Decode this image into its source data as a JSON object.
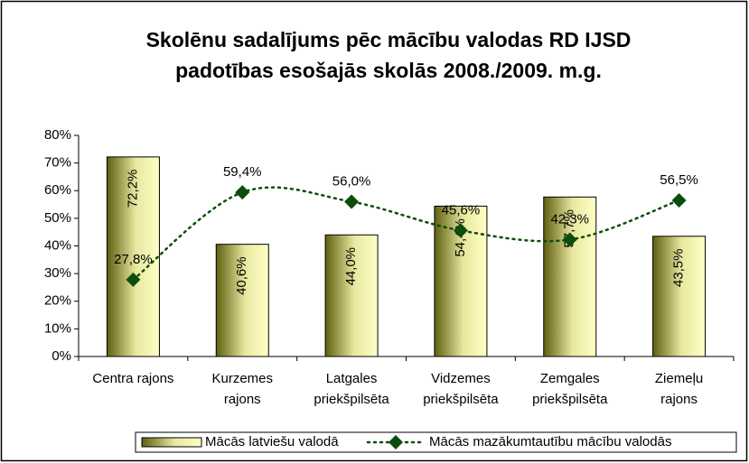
{
  "chart_data": {
    "type": "combo",
    "title": [
      "Skolēnu sadalījums pēc mācību valodas RD IJSD",
      "padotības esošajās skolās 2008./2009. m.g."
    ],
    "categories": [
      [
        "Centra rajons"
      ],
      [
        "Kurzemes",
        "rajons"
      ],
      [
        "Latgales",
        "priekšpilsēta"
      ],
      [
        "Vidzemes",
        "priekšpilsēta"
      ],
      [
        "Zemgales",
        "priekšpilsēta"
      ],
      [
        "Ziemeļu",
        "rajons"
      ]
    ],
    "series": [
      {
        "name": "Mācās latviešu valodā",
        "type": "bar",
        "color": "#ffffb0",
        "values": [
          72.2,
          40.6,
          44.0,
          54.4,
          57.7,
          43.5
        ],
        "value_labels": [
          "72,2%",
          "40,6%",
          "44,0%",
          "54,4%",
          "57,7%",
          "43,5%"
        ]
      },
      {
        "name": "Mācās mazākumtautību mācību valodās",
        "type": "line",
        "color": "#0b4d0b",
        "values": [
          27.8,
          59.4,
          56.0,
          45.6,
          42.3,
          56.5
        ],
        "value_labels": [
          "27,8%",
          "59,4%",
          "56,0%",
          "45,6%",
          "42,3%",
          "56,5%"
        ]
      }
    ],
    "ylim": [
      0,
      80
    ],
    "yticks": [
      {
        "value": 0,
        "label": "0%"
      },
      {
        "value": 10,
        "label": "10%"
      },
      {
        "value": 20,
        "label": "20%"
      },
      {
        "value": 30,
        "label": "30%"
      },
      {
        "value": 40,
        "label": "40%"
      },
      {
        "value": 50,
        "label": "50%"
      },
      {
        "value": 60,
        "label": "60%"
      },
      {
        "value": 70,
        "label": "70%"
      },
      {
        "value": 80,
        "label": "80%"
      }
    ],
    "legend": "bottom"
  }
}
